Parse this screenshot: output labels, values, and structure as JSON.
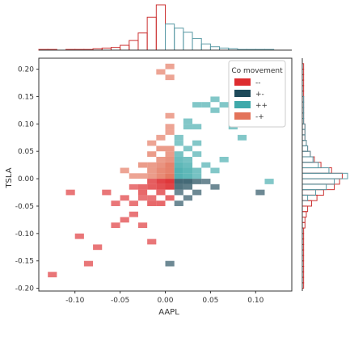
{
  "chart_data": {
    "type": "heatmap",
    "subtype": "joint-histogram",
    "xlabel": "AAPL",
    "ylabel": "TSLA",
    "xlim": [
      -0.14,
      0.14
    ],
    "ylim": [
      -0.205,
      0.22
    ],
    "bin_width_x": 0.01,
    "bin_width_y": 0.01,
    "x_ticks": [
      {
        "value": -0.1,
        "label": "-0.10"
      },
      {
        "value": -0.05,
        "label": "-0.05"
      },
      {
        "value": 0.0,
        "label": "0.00"
      },
      {
        "value": 0.05,
        "label": "0.05"
      },
      {
        "value": 0.1,
        "label": "0.10"
      }
    ],
    "y_ticks": [
      {
        "value": 0.2,
        "label": "0.20"
      },
      {
        "value": 0.15,
        "label": "0.15"
      },
      {
        "value": 0.1,
        "label": "0.10"
      },
      {
        "value": 0.05,
        "label": "0.05"
      },
      {
        "value": 0.0,
        "label": "0.00"
      },
      {
        "value": -0.05,
        "label": "-0.05"
      },
      {
        "value": -0.1,
        "label": "-0.10"
      },
      {
        "value": -0.15,
        "label": "-0.15"
      },
      {
        "value": -0.2,
        "label": "-0.20"
      }
    ],
    "grid": false,
    "legend": {
      "title": "Co movement",
      "position": "top-right"
    },
    "series": [
      {
        "name": "--",
        "color": "#dd2c2f"
      },
      {
        "name": "+-",
        "color": "#1e4a5a"
      },
      {
        "name": "++",
        "color": "#3fa9aa"
      },
      {
        "name": "-+",
        "color": "#e3735a"
      }
    ],
    "cells": [
      {
        "x": -0.13,
        "y": -0.18,
        "series": "--",
        "intensity": 0.5
      },
      {
        "x": -0.09,
        "y": -0.16,
        "series": "--",
        "intensity": 0.5
      },
      {
        "x": -0.08,
        "y": -0.13,
        "series": "--",
        "intensity": 0.5
      },
      {
        "x": -0.1,
        "y": -0.11,
        "series": "--",
        "intensity": 0.5
      },
      {
        "x": -0.06,
        "y": -0.09,
        "series": "--",
        "intensity": 0.5
      },
      {
        "x": -0.05,
        "y": -0.08,
        "series": "--",
        "intensity": 0.5
      },
      {
        "x": -0.03,
        "y": -0.09,
        "series": "--",
        "intensity": 0.5
      },
      {
        "x": -0.02,
        "y": -0.12,
        "series": "--",
        "intensity": 0.5
      },
      {
        "x": -0.06,
        "y": -0.05,
        "series": "--",
        "intensity": 0.5
      },
      {
        "x": -0.04,
        "y": -0.05,
        "series": "--",
        "intensity": 0.5
      },
      {
        "x": -0.04,
        "y": -0.07,
        "series": "--",
        "intensity": 0.5
      },
      {
        "x": -0.05,
        "y": -0.04,
        "series": "--",
        "intensity": 0.5
      },
      {
        "x": -0.03,
        "y": -0.04,
        "series": "--",
        "intensity": 0.5
      },
      {
        "x": -0.02,
        "y": -0.04,
        "series": "--",
        "intensity": 0.5
      },
      {
        "x": -0.02,
        "y": -0.05,
        "series": "--",
        "intensity": 0.6
      },
      {
        "x": -0.01,
        "y": -0.05,
        "series": "--",
        "intensity": 0.6
      },
      {
        "x": -0.01,
        "y": -0.03,
        "series": "--",
        "intensity": 0.6
      },
      {
        "x": 0.0,
        "y": -0.04,
        "series": "--",
        "intensity": 0.6
      },
      {
        "x": -0.03,
        "y": -0.03,
        "series": "--",
        "intensity": 0.6
      },
      {
        "x": -0.03,
        "y": -0.02,
        "series": "--",
        "intensity": 0.6
      },
      {
        "x": -0.02,
        "y": -0.02,
        "series": "--",
        "intensity": 0.7
      },
      {
        "x": -0.01,
        "y": -0.02,
        "series": "--",
        "intensity": 0.8
      },
      {
        "x": 0.0,
        "y": -0.02,
        "series": "--",
        "intensity": 0.9
      },
      {
        "x": -0.01,
        "y": -0.01,
        "series": "--",
        "intensity": 0.9
      },
      {
        "x": 0.0,
        "y": -0.01,
        "series": "--",
        "intensity": 1.0
      },
      {
        "x": -0.02,
        "y": -0.01,
        "series": "--",
        "intensity": 0.7
      },
      {
        "x": -0.04,
        "y": -0.02,
        "series": "--",
        "intensity": 0.5
      },
      {
        "x": -0.11,
        "y": -0.03,
        "series": "--",
        "intensity": 0.5
      },
      {
        "x": -0.07,
        "y": -0.03,
        "series": "--",
        "intensity": 0.5
      },
      {
        "x": -0.05,
        "y": 0.01,
        "series": "-+",
        "intensity": 0.5
      },
      {
        "x": -0.04,
        "y": 0.0,
        "series": "-+",
        "intensity": 0.5
      },
      {
        "x": -0.03,
        "y": 0.0,
        "series": "-+",
        "intensity": 0.5
      },
      {
        "x": -0.03,
        "y": 0.02,
        "series": "-+",
        "intensity": 0.6
      },
      {
        "x": -0.02,
        "y": 0.0,
        "series": "-+",
        "intensity": 0.6
      },
      {
        "x": -0.02,
        "y": 0.01,
        "series": "-+",
        "intensity": 0.6
      },
      {
        "x": -0.02,
        "y": 0.02,
        "series": "-+",
        "intensity": 0.6
      },
      {
        "x": -0.01,
        "y": 0.0,
        "series": "-+",
        "intensity": 0.8
      },
      {
        "x": -0.01,
        "y": 0.01,
        "series": "-+",
        "intensity": 0.8
      },
      {
        "x": -0.01,
        "y": 0.02,
        "series": "-+",
        "intensity": 0.7
      },
      {
        "x": -0.01,
        "y": 0.03,
        "series": "-+",
        "intensity": 0.6
      },
      {
        "x": -0.02,
        "y": 0.04,
        "series": "-+",
        "intensity": 0.6
      },
      {
        "x": -0.01,
        "y": 0.05,
        "series": "-+",
        "intensity": 0.6
      },
      {
        "x": 0.0,
        "y": 0.0,
        "series": "-+",
        "intensity": 1.0
      },
      {
        "x": 0.0,
        "y": 0.01,
        "series": "-+",
        "intensity": 0.9
      },
      {
        "x": 0.0,
        "y": 0.02,
        "series": "-+",
        "intensity": 0.9
      },
      {
        "x": 0.0,
        "y": 0.03,
        "series": "-+",
        "intensity": 0.7
      },
      {
        "x": 0.0,
        "y": 0.04,
        "series": "-+",
        "intensity": 0.6
      },
      {
        "x": 0.0,
        "y": 0.05,
        "series": "-+",
        "intensity": 0.6
      },
      {
        "x": -0.02,
        "y": 0.06,
        "series": "-+",
        "intensity": 0.5
      },
      {
        "x": -0.01,
        "y": 0.07,
        "series": "-+",
        "intensity": 0.5
      },
      {
        "x": 0.0,
        "y": 0.08,
        "series": "-+",
        "intensity": 0.5
      },
      {
        "x": 0.0,
        "y": 0.09,
        "series": "-+",
        "intensity": 0.5
      },
      {
        "x": 0.0,
        "y": 0.11,
        "series": "-+",
        "intensity": 0.5
      },
      {
        "x": 0.0,
        "y": 0.2,
        "series": "-+",
        "intensity": 0.5
      },
      {
        "x": 0.0,
        "y": 0.18,
        "series": "-+",
        "intensity": 0.5
      },
      {
        "x": -0.01,
        "y": 0.19,
        "series": "-+",
        "intensity": 0.5
      },
      {
        "x": 0.01,
        "y": -0.01,
        "series": "+-",
        "intensity": 0.8
      },
      {
        "x": 0.01,
        "y": -0.02,
        "series": "+-",
        "intensity": 0.7
      },
      {
        "x": 0.02,
        "y": -0.01,
        "series": "+-",
        "intensity": 0.8
      },
      {
        "x": 0.02,
        "y": -0.02,
        "series": "+-",
        "intensity": 0.6
      },
      {
        "x": 0.03,
        "y": -0.01,
        "series": "+-",
        "intensity": 0.6
      },
      {
        "x": 0.01,
        "y": -0.03,
        "series": "+-",
        "intensity": 0.5
      },
      {
        "x": 0.03,
        "y": -0.03,
        "series": "+-",
        "intensity": 0.5
      },
      {
        "x": 0.04,
        "y": -0.01,
        "series": "+-",
        "intensity": 0.5
      },
      {
        "x": 0.02,
        "y": -0.04,
        "series": "+-",
        "intensity": 0.5
      },
      {
        "x": 0.01,
        "y": -0.05,
        "series": "+-",
        "intensity": 0.5
      },
      {
        "x": 0.05,
        "y": -0.02,
        "series": "+-",
        "intensity": 0.5
      },
      {
        "x": 0.1,
        "y": -0.03,
        "series": "+-",
        "intensity": 0.5
      },
      {
        "x": 0.0,
        "y": -0.16,
        "series": "+-",
        "intensity": 0.5
      },
      {
        "x": 0.01,
        "y": 0.0,
        "series": "++",
        "intensity": 0.9
      },
      {
        "x": 0.01,
        "y": 0.01,
        "series": "++",
        "intensity": 0.9
      },
      {
        "x": 0.01,
        "y": 0.02,
        "series": "++",
        "intensity": 0.8
      },
      {
        "x": 0.01,
        "y": 0.03,
        "series": "++",
        "intensity": 0.7
      },
      {
        "x": 0.01,
        "y": 0.04,
        "series": "++",
        "intensity": 0.6
      },
      {
        "x": 0.01,
        "y": 0.06,
        "series": "++",
        "intensity": 0.5
      },
      {
        "x": 0.01,
        "y": 0.07,
        "series": "++",
        "intensity": 0.5
      },
      {
        "x": 0.02,
        "y": 0.0,
        "series": "++",
        "intensity": 0.8
      },
      {
        "x": 0.02,
        "y": 0.01,
        "series": "++",
        "intensity": 0.8
      },
      {
        "x": 0.02,
        "y": 0.02,
        "series": "++",
        "intensity": 0.7
      },
      {
        "x": 0.02,
        "y": 0.03,
        "series": "++",
        "intensity": 0.6
      },
      {
        "x": 0.02,
        "y": 0.05,
        "series": "++",
        "intensity": 0.5
      },
      {
        "x": 0.02,
        "y": 0.09,
        "series": "++",
        "intensity": 0.5
      },
      {
        "x": 0.02,
        "y": 0.1,
        "series": "++",
        "intensity": 0.5
      },
      {
        "x": 0.03,
        "y": 0.0,
        "series": "++",
        "intensity": 0.6
      },
      {
        "x": 0.03,
        "y": 0.01,
        "series": "++",
        "intensity": 0.6
      },
      {
        "x": 0.03,
        "y": 0.04,
        "series": "++",
        "intensity": 0.5
      },
      {
        "x": 0.03,
        "y": 0.06,
        "series": "++",
        "intensity": 0.5
      },
      {
        "x": 0.03,
        "y": 0.09,
        "series": "++",
        "intensity": 0.5
      },
      {
        "x": 0.03,
        "y": 0.13,
        "series": "++",
        "intensity": 0.5
      },
      {
        "x": 0.04,
        "y": 0.02,
        "series": "++",
        "intensity": 0.5
      },
      {
        "x": 0.04,
        "y": 0.13,
        "series": "++",
        "intensity": 0.5
      },
      {
        "x": 0.05,
        "y": 0.01,
        "series": "++",
        "intensity": 0.5
      },
      {
        "x": 0.05,
        "y": 0.12,
        "series": "++",
        "intensity": 0.5
      },
      {
        "x": 0.05,
        "y": 0.14,
        "series": "++",
        "intensity": 0.5
      },
      {
        "x": 0.06,
        "y": 0.03,
        "series": "++",
        "intensity": 0.5
      },
      {
        "x": 0.06,
        "y": 0.13,
        "series": "++",
        "intensity": 0.5
      },
      {
        "x": 0.07,
        "y": 0.09,
        "series": "++",
        "intensity": 0.5
      },
      {
        "x": 0.08,
        "y": 0.07,
        "series": "++",
        "intensity": 0.5
      },
      {
        "x": 0.09,
        "y": 0.1,
        "series": "++",
        "intensity": 0.5
      },
      {
        "x": 0.11,
        "y": -0.01,
        "series": "++",
        "intensity": 0.5
      }
    ],
    "marginal_x": {
      "series": [
        {
          "name": "--",
          "color": "#cc3333",
          "bins": [
            -0.14,
            -0.13,
            -0.12,
            -0.11,
            -0.1,
            -0.09,
            -0.08,
            -0.07,
            -0.06,
            -0.05,
            -0.04,
            -0.03,
            -0.02,
            -0.01
          ],
          "counts": [
            1,
            1,
            0,
            1,
            1,
            1,
            2,
            3,
            4,
            7,
            14,
            25,
            48,
            66
          ]
        },
        {
          "name": "++",
          "color": "#5a9aa5",
          "bins": [
            0.0,
            0.01,
            0.02,
            0.03,
            0.04,
            0.05,
            0.06,
            0.07,
            0.08,
            0.09,
            0.1,
            0.11,
            0.12
          ],
          "counts": [
            38,
            32,
            26,
            17,
            9,
            5,
            3,
            2,
            1,
            1,
            1,
            1,
            0
          ]
        }
      ]
    },
    "marginal_y": {
      "series": [
        {
          "name": "--",
          "color": "#cc3333",
          "bins": [
            -0.2,
            -0.19,
            -0.18,
            -0.17,
            -0.16,
            -0.15,
            -0.14,
            -0.13,
            -0.12,
            -0.11,
            -0.1,
            -0.09,
            -0.08,
            -0.07,
            -0.06,
            -0.05,
            -0.04,
            -0.03,
            -0.02,
            -0.01,
            0.0,
            0.01,
            0.02,
            0.03,
            0.04,
            0.05,
            0.06,
            0.07,
            0.08,
            0.09,
            0.1,
            0.11,
            0.12,
            0.13,
            0.14,
            0.15,
            0.16,
            0.17,
            0.18,
            0.19,
            0.2
          ],
          "counts": [
            1,
            1,
            1,
            1,
            1,
            1,
            1,
            1,
            1,
            1,
            1,
            2,
            2,
            3,
            4,
            7,
            11,
            16,
            24,
            28,
            30,
            22,
            14,
            9,
            6,
            4,
            3,
            2,
            2,
            2,
            1,
            1,
            1,
            1,
            1,
            1,
            1,
            1,
            1,
            1,
            1
          ]
        },
        {
          "name": "++",
          "color": "#5a9aa5",
          "bins": [
            -0.04,
            -0.03,
            -0.02,
            -0.01,
            0.0,
            0.01,
            0.02,
            0.03,
            0.04,
            0.05,
            0.06,
            0.07,
            0.08,
            0.09,
            0.1,
            0.11,
            0.12,
            0.13,
            0.14
          ],
          "counts": [
            4,
            10,
            18,
            24,
            34,
            20,
            12,
            8,
            6,
            4,
            3,
            2,
            2,
            2,
            1,
            1,
            1,
            1,
            1
          ]
        }
      ]
    }
  }
}
